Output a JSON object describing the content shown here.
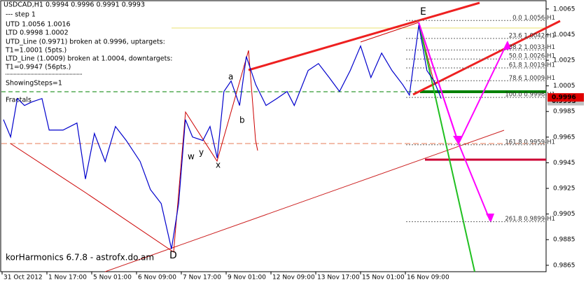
{
  "chart_data": {
    "type": "line",
    "title": "USDCAD,H1  0.9994 0.9996 0.9991 0.9993",
    "info_lines": [
      "---  step 1",
      "UTD 1.0056  1.0016",
      "LTD 0.9998 1.0002",
      "UTD_Line (0.9971) broken at 0.9996, uptargets:",
      "T1=1.0001 (5pts.)",
      "LTD_Line (1.0009) broken at 1.0004, downtargets:",
      "T1=0.9947 (56pts.)",
      "ShowingSteps=1",
      "Fractals"
    ],
    "footer": "korHarmonics 6.7.8 - astrofx.do.am",
    "xlim": [
      0,
      12.14
    ],
    "xticks": [
      {
        "value": 0,
        "label": "31 Oct 2012"
      },
      {
        "value": 1,
        "label": "1 Nov 17:00"
      },
      {
        "value": 2,
        "label": "5 Nov 01:00"
      },
      {
        "value": 3,
        "label": "6 Nov 09:00"
      },
      {
        "value": 4,
        "label": "7 Nov 17:00"
      },
      {
        "value": 5,
        "label": "9 Nov 01:00"
      },
      {
        "value": 6,
        "label": "12 Nov 09:00"
      },
      {
        "value": 7,
        "label": "13 Nov 17:00"
      },
      {
        "value": 8,
        "label": "15 Nov 01:00"
      },
      {
        "value": 9,
        "label": "16 Nov 09:00"
      }
    ],
    "ylim": [
      0.986,
      1.0072
    ],
    "yticks": [
      1.0065,
      1.0045,
      1.0025,
      1.0005,
      0.9985,
      0.9965,
      0.9945,
      0.9925,
      0.9905,
      0.9885,
      0.9865
    ],
    "series": [
      {
        "name": "USDCAD",
        "color": "#0000cc",
        "x": [
          0.03,
          0.19,
          0.34,
          0.5,
          0.66,
          0.89,
          1.05,
          1.36,
          1.67,
          1.86,
          2.06,
          2.3,
          2.53,
          2.77,
          3.08,
          3.31,
          3.55,
          3.78,
          3.94,
          4.09,
          4.25,
          4.48,
          4.64,
          4.8,
          4.95,
          5.11,
          5.3,
          5.45,
          5.66,
          5.89,
          6.13,
          6.36,
          6.52,
          6.83,
          7.06,
          7.3,
          7.53,
          7.77,
          8.0,
          8.23,
          8.47,
          8.7,
          8.94,
          9.09,
          9.3,
          9.48,
          9.64,
          9.8
        ],
        "values": [
          0.99787,
          0.99651,
          0.99951,
          0.99897,
          0.99924,
          0.99951,
          0.99705,
          0.99705,
          0.9976,
          0.99323,
          0.99678,
          0.9946,
          0.99733,
          0.99624,
          0.9946,
          0.99241,
          0.99132,
          0.98777,
          0.99132,
          0.99787,
          0.99651,
          0.99624,
          0.99733,
          0.99487,
          1.00006,
          1.00088,
          0.99897,
          1.00279,
          1.0006,
          0.99897,
          0.99951,
          1.00006,
          0.99897,
          1.0017,
          1.00224,
          1.00115,
          1.00006,
          1.0017,
          1.00361,
          1.00115,
          1.00306,
          1.0017,
          1.0006,
          0.99978,
          1.00524,
          1.0017,
          1.00088,
          0.99951
        ]
      }
    ],
    "fib_levels": [
      {
        "label": "0.0 1.0056-H1",
        "value": 1.0056
      },
      {
        "label": "23.6 1.0042-H1",
        "value": 1.0042
      },
      {
        "label": "38.2 1.0033-H1",
        "value": 1.0033
      },
      {
        "label": "50.0 1.0026-H1",
        "value": 1.0026
      },
      {
        "label": "61.8 1.0019-H1",
        "value": 1.0019
      },
      {
        "label": "78.6 1.0009-H1",
        "value": 1.0009
      },
      {
        "label": "100.0 0.9996-H1",
        "value": 0.9996
      },
      {
        "label": "161.8 0.9959-H1",
        "value": 0.9959
      },
      {
        "label": "261.8 0.9899-H1",
        "value": 0.9899
      }
    ],
    "point_labels": [
      "E",
      "D",
      "a",
      "b",
      "w",
      "x",
      "y"
    ],
    "ask_price": 0.9996,
    "bid_price": 0.9993,
    "grid": false
  }
}
